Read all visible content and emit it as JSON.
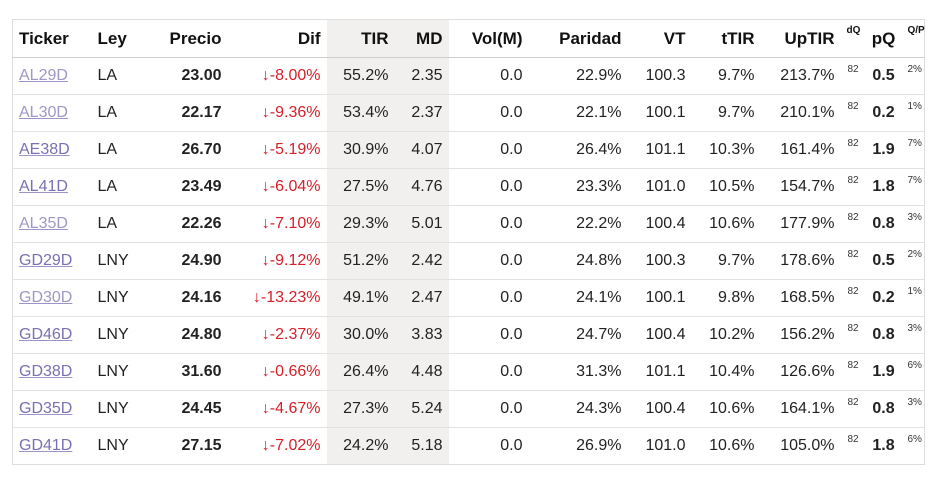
{
  "headers": {
    "ticker": "Ticker",
    "ley": "Ley",
    "precio": "Precio",
    "dif": "Dif",
    "tir": "TIR",
    "md": "MD",
    "vol": "Vol(M)",
    "paridad": "Paridad",
    "vt": "VT",
    "ttir": "tTIR",
    "uptir": "UpTIR",
    "dq": "dQ",
    "pq": "pQ",
    "qp": "Q/P"
  },
  "rows": [
    {
      "ticker": "AL29D",
      "ley": "LA",
      "precio": "23.00",
      "dif": "↓-8.00%",
      "tir": "55.2%",
      "md": "2.35",
      "vol": "0.0",
      "paridad": "22.9%",
      "vt": "100.3",
      "ttir": "9.7%",
      "uptir": "213.7%",
      "dq": "82",
      "pq": "0.5",
      "qp": "2%"
    },
    {
      "ticker": "AL30D",
      "ley": "LA",
      "precio": "22.17",
      "dif": "↓-9.36%",
      "tir": "53.4%",
      "md": "2.37",
      "vol": "0.0",
      "paridad": "22.1%",
      "vt": "100.1",
      "ttir": "9.7%",
      "uptir": "210.1%",
      "dq": "82",
      "pq": "0.2",
      "qp": "1%"
    },
    {
      "ticker": "AE38D",
      "ley": "LA",
      "precio": "26.70",
      "dif": "↓-5.19%",
      "tir": "30.9%",
      "md": "4.07",
      "vol": "0.0",
      "paridad": "26.4%",
      "vt": "101.1",
      "ttir": "10.3%",
      "uptir": "161.4%",
      "dq": "82",
      "pq": "1.9",
      "qp": "7%"
    },
    {
      "ticker": "AL41D",
      "ley": "LA",
      "precio": "23.49",
      "dif": "↓-6.04%",
      "tir": "27.5%",
      "md": "4.76",
      "vol": "0.0",
      "paridad": "23.3%",
      "vt": "101.0",
      "ttir": "10.5%",
      "uptir": "154.7%",
      "dq": "82",
      "pq": "1.8",
      "qp": "7%"
    },
    {
      "ticker": "AL35D",
      "ley": "LA",
      "precio": "22.26",
      "dif": "↓-7.10%",
      "tir": "29.3%",
      "md": "5.01",
      "vol": "0.0",
      "paridad": "22.2%",
      "vt": "100.4",
      "ttir": "10.6%",
      "uptir": "177.9%",
      "dq": "82",
      "pq": "0.8",
      "qp": "3%"
    },
    {
      "ticker": "GD29D",
      "ley": "LNY",
      "precio": "24.90",
      "dif": "↓-9.12%",
      "tir": "51.2%",
      "md": "2.42",
      "vol": "0.0",
      "paridad": "24.8%",
      "vt": "100.3",
      "ttir": "9.7%",
      "uptir": "178.6%",
      "dq": "82",
      "pq": "0.5",
      "qp": "2%"
    },
    {
      "ticker": "GD30D",
      "ley": "LNY",
      "precio": "24.16",
      "dif": "↓-13.23%",
      "tir": "49.1%",
      "md": "2.47",
      "vol": "0.0",
      "paridad": "24.1%",
      "vt": "100.1",
      "ttir": "9.8%",
      "uptir": "168.5%",
      "dq": "82",
      "pq": "0.2",
      "qp": "1%"
    },
    {
      "ticker": "GD46D",
      "ley": "LNY",
      "precio": "24.80",
      "dif": "↓-2.37%",
      "tir": "30.0%",
      "md": "3.83",
      "vol": "0.0",
      "paridad": "24.7%",
      "vt": "100.4",
      "ttir": "10.2%",
      "uptir": "156.2%",
      "dq": "82",
      "pq": "0.8",
      "qp": "3%"
    },
    {
      "ticker": "GD38D",
      "ley": "LNY",
      "precio": "31.60",
      "dif": "↓-0.66%",
      "tir": "26.4%",
      "md": "4.48",
      "vol": "0.0",
      "paridad": "31.3%",
      "vt": "101.1",
      "ttir": "10.4%",
      "uptir": "126.6%",
      "dq": "82",
      "pq": "1.9",
      "qp": "6%"
    },
    {
      "ticker": "GD35D",
      "ley": "LNY",
      "precio": "24.45",
      "dif": "↓-4.67%",
      "tir": "27.3%",
      "md": "5.24",
      "vol": "0.0",
      "paridad": "24.3%",
      "vt": "100.4",
      "ttir": "10.6%",
      "uptir": "164.1%",
      "dq": "82",
      "pq": "0.8",
      "qp": "3%"
    },
    {
      "ticker": "GD41D",
      "ley": "LNY",
      "precio": "27.15",
      "dif": "↓-7.02%",
      "tir": "24.2%",
      "md": "5.18",
      "vol": "0.0",
      "paridad": "26.9%",
      "vt": "101.0",
      "ttir": "10.6%",
      "uptir": "105.0%",
      "dq": "82",
      "pq": "1.8",
      "qp": "6%"
    }
  ],
  "colors": {
    "link": "#7c6fb3",
    "negative": "#d6202a",
    "highlight_column_bg": "#f2f0ef"
  }
}
